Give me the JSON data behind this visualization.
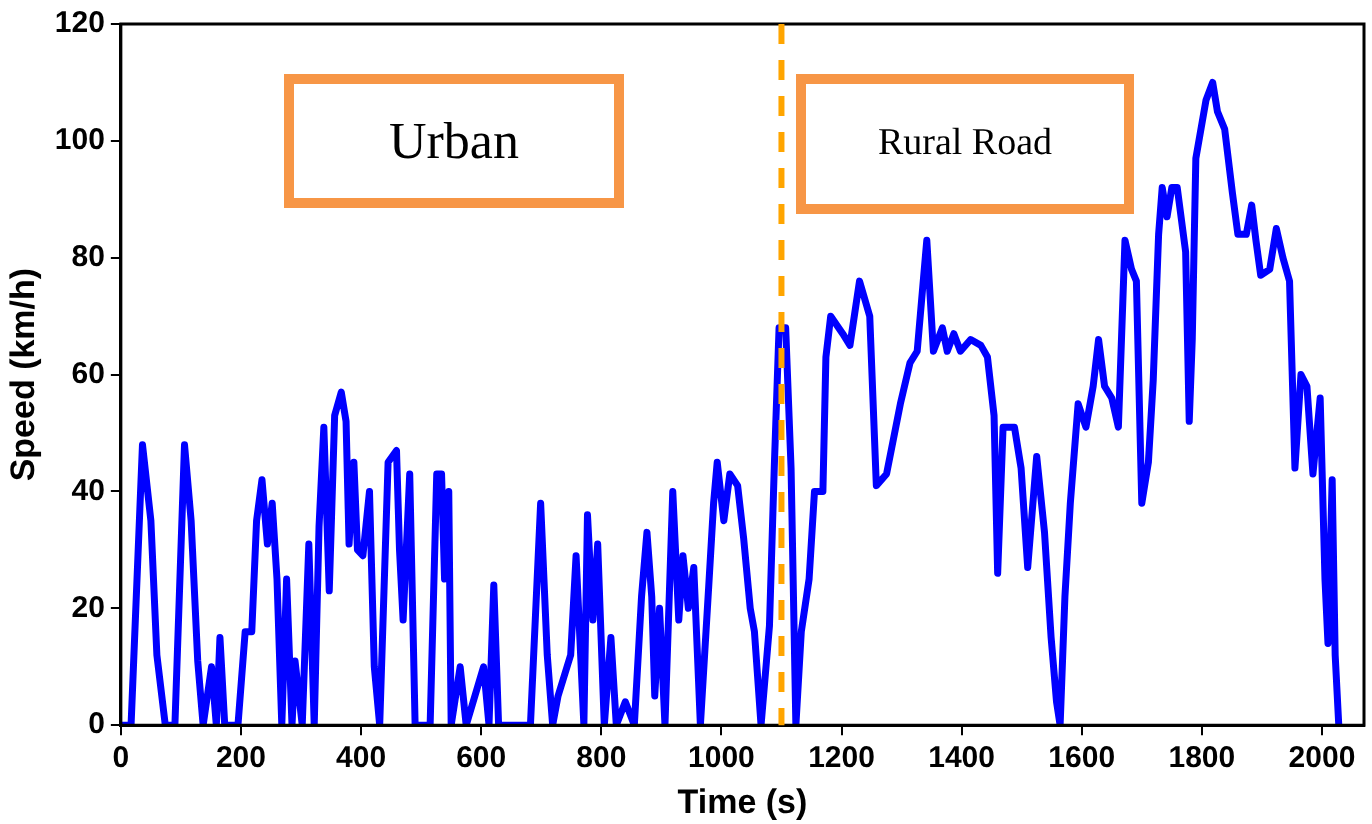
{
  "chart_data": {
    "type": "line",
    "xlabel": "Time (s)",
    "ylabel": "Speed (km/h)",
    "xlim": [
      0,
      2070
    ],
    "xticks": [
      0,
      200,
      400,
      600,
      800,
      1000,
      1200,
      1400,
      1600,
      1800,
      2000
    ],
    "ylim": [
      0,
      120
    ],
    "yticks": [
      0,
      20,
      40,
      60,
      80,
      100,
      120
    ],
    "grid": false,
    "legend": false,
    "marker": "none",
    "line_style": "solid",
    "annotations": [
      "Urban",
      "Rural Road"
    ],
    "ref_lines": [
      {
        "axis": "x",
        "value": 1100,
        "color": "#ffa500",
        "line_style": "dashed"
      }
    ],
    "series": [
      {
        "color": "#0000ff",
        "x": [
          0,
          17,
          36,
          50,
          60,
          74,
          90,
          106,
          117,
          128,
          137,
          151,
          159,
          165,
          173,
          195,
          207,
          218,
          226,
          235,
          244,
          252,
          260,
          268,
          276,
          285,
          290,
          302,
          313,
          322,
          330,
          338,
          347,
          356,
          367,
          375,
          380,
          388,
          394,
          403,
          414,
          422,
          431,
          445,
          459,
          464,
          470,
          481,
          490,
          515,
          526,
          534,
          539,
          546,
          550,
          565,
          575,
          604,
          613,
          621,
          629,
          682,
          699,
          710,
          719,
          728,
          749,
          758,
          771,
          777,
          786,
          794,
          805,
          816,
          825,
          840,
          855,
          867,
          876,
          884,
          889,
          897,
          906,
          919,
          929,
          936,
          945,
          954,
          965,
          979,
          987,
          993,
          1004,
          1014,
          1027,
          1037,
          1048,
          1055,
          1066,
          1080,
          1088,
          1096,
          1107,
          1116,
          1124,
          1133,
          1146,
          1155,
          1169,
          1174,
          1182,
          1202,
          1214,
          1230,
          1247,
          1258,
          1275,
          1298,
          1314,
          1326,
          1342,
          1353,
          1368,
          1376,
          1387,
          1398,
          1415,
          1432,
          1443,
          1454,
          1460,
          1469,
          1488,
          1499,
          1510,
          1525,
          1538,
          1549,
          1558,
          1564,
          1572,
          1581,
          1594,
          1607,
          1619,
          1628,
          1638,
          1650,
          1661,
          1672,
          1683,
          1691,
          1700,
          1711,
          1719,
          1728,
          1734,
          1742,
          1750,
          1759,
          1773,
          1779,
          1784,
          1790,
          1807,
          1818,
          1826,
          1838,
          1851,
          1860,
          1874,
          1883,
          1890,
          1898,
          1913,
          1924,
          1935,
          1946,
          1955,
          1965,
          1975,
          1985,
          1997,
          2005,
          2010,
          2017,
          2022,
          2028
        ],
        "values": [
          0,
          0,
          48,
          35,
          12,
          0,
          0,
          48,
          35,
          11,
          0,
          10,
          0,
          15,
          0,
          0,
          16,
          16,
          35,
          42,
          31,
          38,
          25,
          0,
          25,
          0,
          11,
          0,
          31,
          0,
          34,
          51,
          23,
          53,
          57,
          52,
          31,
          45,
          30,
          29,
          40,
          10,
          0,
          45,
          47,
          30,
          18,
          43,
          0,
          0,
          43,
          43,
          25,
          40,
          0,
          10,
          0,
          10,
          0,
          24,
          0,
          0,
          38,
          12,
          0,
          5,
          12,
          29,
          0,
          36,
          18,
          31,
          0,
          15,
          0,
          4,
          0,
          22,
          33,
          22,
          5,
          20,
          0,
          40,
          18,
          29,
          20,
          27,
          0,
          24,
          38,
          45,
          35,
          43,
          41,
          32,
          20,
          16,
          0,
          17,
          44,
          68,
          68,
          44,
          0,
          16,
          25,
          40,
          40,
          63,
          70,
          67,
          65,
          76,
          70,
          41,
          43,
          55,
          62,
          64,
          83,
          64,
          68,
          64,
          67,
          64,
          66,
          65,
          63,
          53,
          26,
          51,
          51,
          44,
          27,
          46,
          33,
          15,
          4,
          0,
          22,
          38,
          55,
          51,
          58,
          66,
          58,
          56,
          51,
          83,
          78,
          76,
          38,
          45,
          59,
          84,
          92,
          87,
          92,
          92,
          81,
          52,
          66,
          97,
          107,
          110,
          105,
          102,
          91,
          84,
          84,
          89,
          83,
          77,
          78,
          85,
          80,
          76,
          44,
          60,
          58,
          43,
          56,
          25,
          14,
          42,
          12,
          0
        ]
      }
    ]
  }
}
